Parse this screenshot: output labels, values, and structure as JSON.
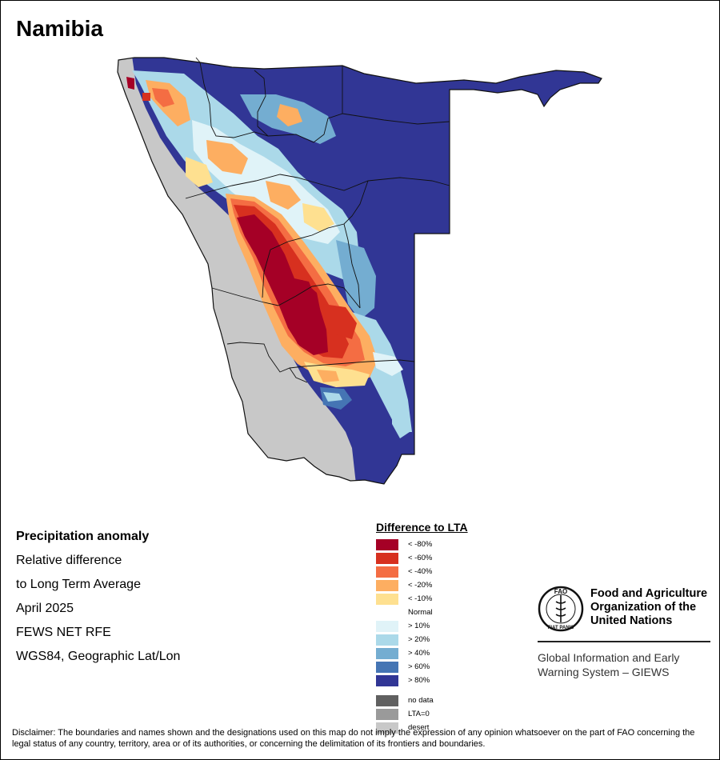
{
  "map_title": "Namibia",
  "info": {
    "heading": "Precipitation anomaly",
    "lines": [
      "Relative difference",
      "to Long Term Average",
      "April 2025",
      "FEWS NET RFE",
      "WGS84, Geographic Lat/Lon"
    ]
  },
  "legend": {
    "title": "Difference to LTA",
    "items": [
      {
        "label": "< -80%",
        "color": "#a50026"
      },
      {
        "label": "< -60%",
        "color": "#d7301f"
      },
      {
        "label": "< -40%",
        "color": "#f46d43"
      },
      {
        "label": "< -20%",
        "color": "#fdae61"
      },
      {
        "label": "< -10%",
        "color": "#fee090"
      },
      {
        "label": "Normal",
        "color": "#ffffff"
      },
      {
        "label": "> 10%",
        "color": "#e0f3f8"
      },
      {
        "label": "> 20%",
        "color": "#abd9e9"
      },
      {
        "label": "> 40%",
        "color": "#74add1"
      },
      {
        "label": "> 60%",
        "color": "#4575b4"
      },
      {
        "label": "> 80%",
        "color": "#313695"
      }
    ],
    "extra": [
      {
        "label": "no data",
        "color": "#606060"
      },
      {
        "label": "LTA=0",
        "color": "#9a9a9a"
      },
      {
        "label": "desert",
        "color": "#c8c8c8"
      }
    ]
  },
  "fao": {
    "logo_text": "FAO",
    "logo_motto": "FIAT PANIS",
    "name_lines": [
      "Food and Agriculture",
      "Organization of the",
      "United Nations"
    ],
    "giews_lines": [
      "Global Information and Early",
      "Warning System – GIEWS"
    ]
  },
  "disclaimer": "Disclaimer: The boundaries and names shown and the designations used on this map do not imply the expression of any opinion whatsoever on the part of FAO concerning the legal status of any country, territory, area or of its authorities, or concerning the delimitation of its frontiers and boundaries."
}
